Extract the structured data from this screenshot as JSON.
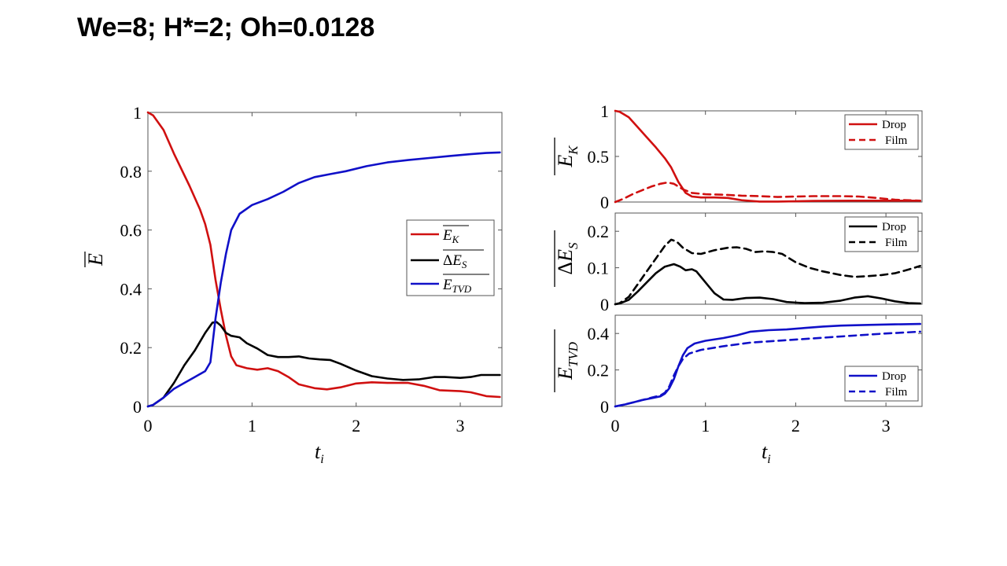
{
  "page": {
    "title": "We=8; H*=2; Oh=0.0128"
  },
  "colors": {
    "red": "#d01010",
    "black": "#000000",
    "blue": "#1010c8"
  },
  "chart_data": [
    {
      "type": "line",
      "xlabel": "t_i",
      "ylabel": "E",
      "xlim": [
        0,
        3.4
      ],
      "ylim": [
        0,
        1
      ],
      "xticks": [
        "0",
        "1",
        "2",
        "3"
      ],
      "yticks": [
        "0",
        "0.2",
        "0.4",
        "0.6",
        "0.8",
        "1"
      ],
      "legend_position": "right",
      "series": [
        {
          "name": "E_K",
          "color": "#d01010",
          "dash": "solid",
          "points": [
            [
              0,
              1
            ],
            [
              0.05,
              0.99
            ],
            [
              0.15,
              0.94
            ],
            [
              0.25,
              0.86
            ],
            [
              0.4,
              0.75
            ],
            [
              0.5,
              0.67
            ],
            [
              0.55,
              0.62
            ],
            [
              0.6,
              0.55
            ],
            [
              0.65,
              0.43
            ],
            [
              0.7,
              0.33
            ],
            [
              0.75,
              0.24
            ],
            [
              0.8,
              0.17
            ],
            [
              0.85,
              0.14
            ],
            [
              0.95,
              0.13
            ],
            [
              1.05,
              0.125
            ],
            [
              1.15,
              0.13
            ],
            [
              1.25,
              0.12
            ],
            [
              1.35,
              0.1
            ],
            [
              1.45,
              0.075
            ],
            [
              1.6,
              0.062
            ],
            [
              1.72,
              0.058
            ],
            [
              1.85,
              0.065
            ],
            [
              2.0,
              0.078
            ],
            [
              2.15,
              0.082
            ],
            [
              2.3,
              0.08
            ],
            [
              2.5,
              0.08
            ],
            [
              2.65,
              0.07
            ],
            [
              2.8,
              0.055
            ],
            [
              3.0,
              0.052
            ],
            [
              3.1,
              0.048
            ],
            [
              3.25,
              0.035
            ],
            [
              3.38,
              0.032
            ]
          ]
        },
        {
          "name": "ΔE_S",
          "color": "#000000",
          "dash": "solid",
          "points": [
            [
              0,
              0
            ],
            [
              0.05,
              0.005
            ],
            [
              0.15,
              0.03
            ],
            [
              0.25,
              0.08
            ],
            [
              0.35,
              0.14
            ],
            [
              0.45,
              0.19
            ],
            [
              0.55,
              0.25
            ],
            [
              0.62,
              0.285
            ],
            [
              0.66,
              0.287
            ],
            [
              0.7,
              0.275
            ],
            [
              0.75,
              0.25
            ],
            [
              0.8,
              0.24
            ],
            [
              0.88,
              0.235
            ],
            [
              0.95,
              0.215
            ],
            [
              1.05,
              0.197
            ],
            [
              1.15,
              0.175
            ],
            [
              1.25,
              0.168
            ],
            [
              1.35,
              0.168
            ],
            [
              1.45,
              0.17
            ],
            [
              1.55,
              0.163
            ],
            [
              1.65,
              0.16
            ],
            [
              1.75,
              0.158
            ],
            [
              1.85,
              0.145
            ],
            [
              2.0,
              0.122
            ],
            [
              2.15,
              0.103
            ],
            [
              2.3,
              0.095
            ],
            [
              2.45,
              0.09
            ],
            [
              2.6,
              0.092
            ],
            [
              2.75,
              0.1
            ],
            [
              2.85,
              0.1
            ],
            [
              3.0,
              0.097
            ],
            [
              3.1,
              0.1
            ],
            [
              3.2,
              0.107
            ],
            [
              3.38,
              0.107
            ]
          ]
        },
        {
          "name": "E_TVD",
          "color": "#1010c8",
          "dash": "solid",
          "points": [
            [
              0,
              0
            ],
            [
              0.05,
              0.005
            ],
            [
              0.15,
              0.03
            ],
            [
              0.25,
              0.06
            ],
            [
              0.35,
              0.08
            ],
            [
              0.45,
              0.1
            ],
            [
              0.55,
              0.12
            ],
            [
              0.6,
              0.15
            ],
            [
              0.65,
              0.3
            ],
            [
              0.7,
              0.42
            ],
            [
              0.75,
              0.52
            ],
            [
              0.8,
              0.6
            ],
            [
              0.88,
              0.655
            ],
            [
              1.0,
              0.685
            ],
            [
              1.15,
              0.705
            ],
            [
              1.3,
              0.73
            ],
            [
              1.45,
              0.76
            ],
            [
              1.6,
              0.78
            ],
            [
              1.75,
              0.79
            ],
            [
              1.9,
              0.8
            ],
            [
              2.1,
              0.817
            ],
            [
              2.3,
              0.83
            ],
            [
              2.5,
              0.838
            ],
            [
              2.7,
              0.845
            ],
            [
              2.9,
              0.852
            ],
            [
              3.1,
              0.858
            ],
            [
              3.25,
              0.862
            ],
            [
              3.38,
              0.864
            ]
          ]
        }
      ],
      "legend": [
        "E_K",
        "ΔE_S",
        "E_TVD"
      ]
    },
    {
      "type": "line",
      "ylabel": "E_K",
      "xlim": [
        0,
        3.4
      ],
      "ylim": [
        0,
        1
      ],
      "yticks": [
        "0",
        "0.5",
        "1"
      ],
      "legend_position": "top-right",
      "series": [
        {
          "name": "Drop",
          "color": "#d01010",
          "dash": "solid",
          "points": [
            [
              0,
              1
            ],
            [
              0.05,
              0.99
            ],
            [
              0.15,
              0.93
            ],
            [
              0.25,
              0.82
            ],
            [
              0.35,
              0.71
            ],
            [
              0.45,
              0.6
            ],
            [
              0.55,
              0.48
            ],
            [
              0.62,
              0.38
            ],
            [
              0.7,
              0.22
            ],
            [
              0.78,
              0.1
            ],
            [
              0.85,
              0.06
            ],
            [
              0.95,
              0.05
            ],
            [
              1.1,
              0.05
            ],
            [
              1.25,
              0.045
            ],
            [
              1.4,
              0.02
            ],
            [
              1.6,
              0.005
            ],
            [
              1.8,
              0.005
            ],
            [
              2.2,
              0.012
            ],
            [
              2.6,
              0.015
            ],
            [
              3.0,
              0.015
            ],
            [
              3.38,
              0.015
            ]
          ]
        },
        {
          "name": "Film",
          "color": "#d01010",
          "dash": "dashed",
          "points": [
            [
              0,
              0
            ],
            [
              0.1,
              0.04
            ],
            [
              0.2,
              0.09
            ],
            [
              0.3,
              0.13
            ],
            [
              0.4,
              0.17
            ],
            [
              0.5,
              0.2
            ],
            [
              0.58,
              0.215
            ],
            [
              0.65,
              0.2
            ],
            [
              0.75,
              0.14
            ],
            [
              0.85,
              0.1
            ],
            [
              1.0,
              0.085
            ],
            [
              1.2,
              0.08
            ],
            [
              1.4,
              0.07
            ],
            [
              1.6,
              0.065
            ],
            [
              1.8,
              0.055
            ],
            [
              2.0,
              0.06
            ],
            [
              2.2,
              0.065
            ],
            [
              2.5,
              0.065
            ],
            [
              2.7,
              0.06
            ],
            [
              2.9,
              0.045
            ],
            [
              3.1,
              0.025
            ],
            [
              3.38,
              0.015
            ]
          ]
        }
      ],
      "legend": [
        "Drop",
        "Film"
      ]
    },
    {
      "type": "line",
      "ylabel": "ΔE_S",
      "xlim": [
        0,
        3.4
      ],
      "ylim": [
        0,
        0.25
      ],
      "yticks": [
        "0",
        "0.1",
        "0.2"
      ],
      "legend_position": "top-right",
      "series": [
        {
          "name": "Drop",
          "color": "#000000",
          "dash": "solid",
          "points": [
            [
              0,
              0
            ],
            [
              0.05,
              0.002
            ],
            [
              0.15,
              0.012
            ],
            [
              0.25,
              0.035
            ],
            [
              0.35,
              0.06
            ],
            [
              0.45,
              0.085
            ],
            [
              0.55,
              0.103
            ],
            [
              0.65,
              0.11
            ],
            [
              0.72,
              0.103
            ],
            [
              0.78,
              0.093
            ],
            [
              0.85,
              0.096
            ],
            [
              0.9,
              0.09
            ],
            [
              1.0,
              0.06
            ],
            [
              1.1,
              0.03
            ],
            [
              1.2,
              0.013
            ],
            [
              1.3,
              0.012
            ],
            [
              1.45,
              0.017
            ],
            [
              1.6,
              0.018
            ],
            [
              1.75,
              0.014
            ],
            [
              1.9,
              0.006
            ],
            [
              2.1,
              0.003
            ],
            [
              2.3,
              0.004
            ],
            [
              2.5,
              0.01
            ],
            [
              2.65,
              0.018
            ],
            [
              2.8,
              0.022
            ],
            [
              2.95,
              0.016
            ],
            [
              3.1,
              0.008
            ],
            [
              3.25,
              0.003
            ],
            [
              3.38,
              0.002
            ]
          ]
        },
        {
          "name": "Film",
          "color": "#000000",
          "dash": "dashed",
          "points": [
            [
              0,
              0
            ],
            [
              0.05,
              0.003
            ],
            [
              0.15,
              0.02
            ],
            [
              0.25,
              0.055
            ],
            [
              0.35,
              0.09
            ],
            [
              0.45,
              0.125
            ],
            [
              0.55,
              0.16
            ],
            [
              0.62,
              0.177
            ],
            [
              0.68,
              0.172
            ],
            [
              0.75,
              0.155
            ],
            [
              0.85,
              0.14
            ],
            [
              0.95,
              0.138
            ],
            [
              1.1,
              0.148
            ],
            [
              1.25,
              0.155
            ],
            [
              1.35,
              0.156
            ],
            [
              1.45,
              0.152
            ],
            [
              1.55,
              0.143
            ],
            [
              1.65,
              0.145
            ],
            [
              1.75,
              0.143
            ],
            [
              1.85,
              0.138
            ],
            [
              2.0,
              0.115
            ],
            [
              2.15,
              0.1
            ],
            [
              2.3,
              0.09
            ],
            [
              2.5,
              0.08
            ],
            [
              2.65,
              0.075
            ],
            [
              2.8,
              0.077
            ],
            [
              2.95,
              0.08
            ],
            [
              3.1,
              0.085
            ],
            [
              3.25,
              0.095
            ],
            [
              3.38,
              0.105
            ]
          ]
        }
      ],
      "legend": [
        "Drop",
        "Film"
      ]
    },
    {
      "type": "line",
      "xlabel": "t_i",
      "ylabel": "E_TVD",
      "xlim": [
        0,
        3.4
      ],
      "ylim": [
        0,
        0.5
      ],
      "xticks": [
        "0",
        "1",
        "2",
        "3"
      ],
      "yticks": [
        "0",
        "0.2",
        "0.4"
      ],
      "legend_position": "bottom-right",
      "series": [
        {
          "name": "Drop",
          "color": "#1010c8",
          "dash": "solid",
          "points": [
            [
              0,
              0
            ],
            [
              0.1,
              0.01
            ],
            [
              0.2,
              0.022
            ],
            [
              0.3,
              0.035
            ],
            [
              0.4,
              0.045
            ],
            [
              0.5,
              0.055
            ],
            [
              0.55,
              0.07
            ],
            [
              0.6,
              0.1
            ],
            [
              0.65,
              0.15
            ],
            [
              0.7,
              0.22
            ],
            [
              0.75,
              0.28
            ],
            [
              0.8,
              0.32
            ],
            [
              0.88,
              0.345
            ],
            [
              1.0,
              0.36
            ],
            [
              1.2,
              0.375
            ],
            [
              1.35,
              0.39
            ],
            [
              1.5,
              0.41
            ],
            [
              1.7,
              0.418
            ],
            [
              1.9,
              0.422
            ],
            [
              2.1,
              0.43
            ],
            [
              2.3,
              0.438
            ],
            [
              2.5,
              0.443
            ],
            [
              2.8,
              0.447
            ],
            [
              3.1,
              0.45
            ],
            [
              3.38,
              0.452
            ]
          ]
        },
        {
          "name": "Film",
          "color": "#1010c8",
          "dash": "dashed",
          "points": [
            [
              0,
              0
            ],
            [
              0.1,
              0.01
            ],
            [
              0.2,
              0.022
            ],
            [
              0.3,
              0.035
            ],
            [
              0.4,
              0.048
            ],
            [
              0.5,
              0.06
            ],
            [
              0.55,
              0.075
            ],
            [
              0.6,
              0.11
            ],
            [
              0.65,
              0.17
            ],
            [
              0.7,
              0.22
            ],
            [
              0.75,
              0.26
            ],
            [
              0.82,
              0.29
            ],
            [
              0.95,
              0.31
            ],
            [
              1.2,
              0.33
            ],
            [
              1.5,
              0.35
            ],
            [
              1.8,
              0.36
            ],
            [
              2.1,
              0.37
            ],
            [
              2.4,
              0.38
            ],
            [
              2.7,
              0.39
            ],
            [
              3.0,
              0.4
            ],
            [
              3.2,
              0.405
            ],
            [
              3.38,
              0.41
            ]
          ]
        }
      ],
      "legend": [
        "Drop",
        "Film"
      ]
    }
  ]
}
